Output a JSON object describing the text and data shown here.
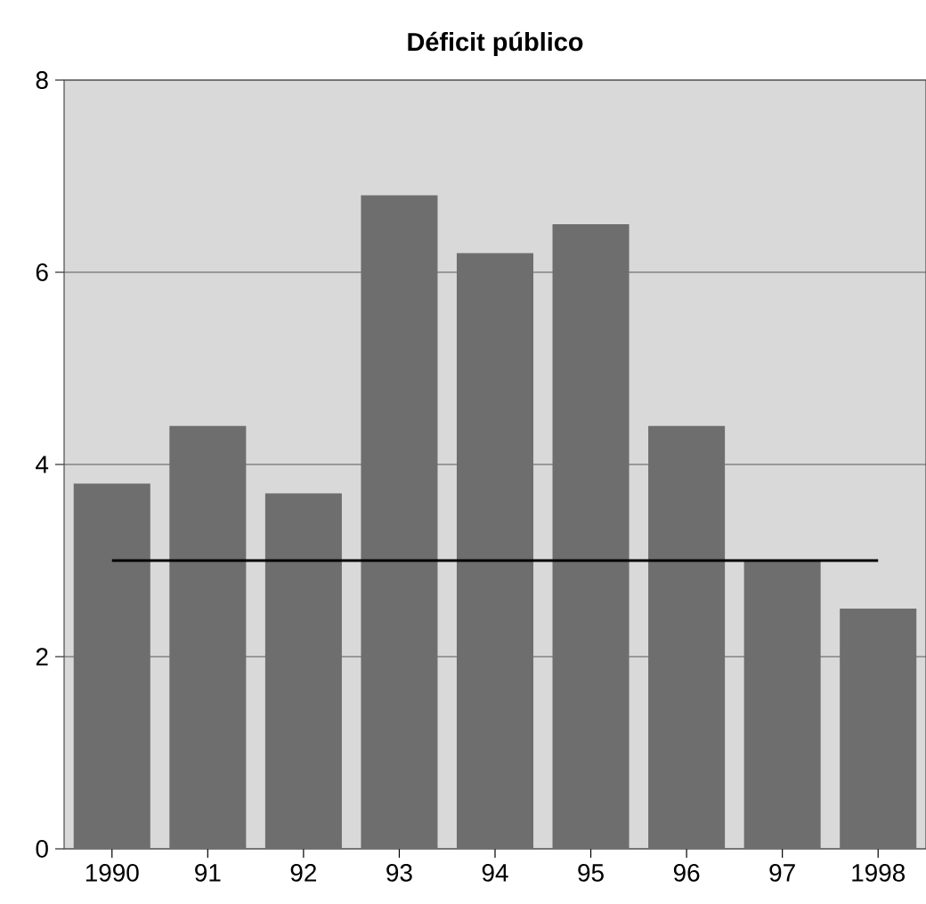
{
  "chart_data": {
    "type": "bar",
    "title": "Déficit público",
    "categories": [
      "1990",
      "91",
      "92",
      "93",
      "94",
      "95",
      "96",
      "97",
      "1998"
    ],
    "values": [
      3.8,
      4.4,
      3.7,
      6.8,
      6.2,
      6.5,
      4.4,
      3.0,
      2.5
    ],
    "color": "#6e6e6e",
    "ylim": [
      0,
      8
    ],
    "yticks": [
      0,
      2,
      4,
      6,
      8
    ],
    "grid": "y",
    "ref_lines": [
      {
        "axis": "y",
        "value": 3,
        "color": "#000000"
      }
    ]
  }
}
